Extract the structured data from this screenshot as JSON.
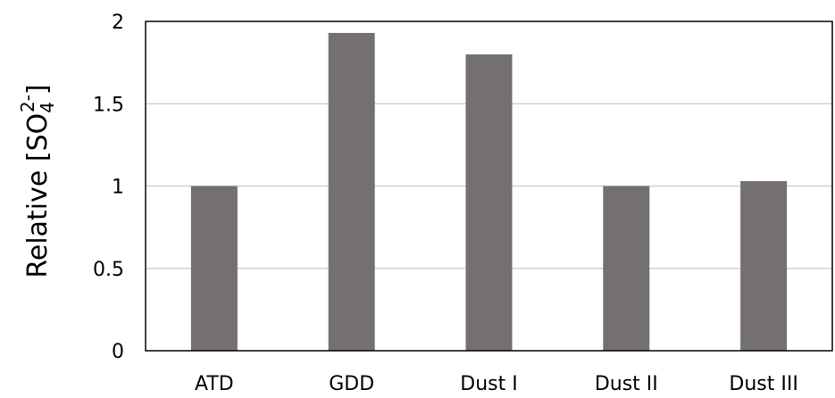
{
  "chart_data": {
    "type": "bar",
    "categories": [
      "ATD",
      "GDD",
      "Dust I",
      "Dust II",
      "Dust III"
    ],
    "values": [
      1.0,
      1.93,
      1.8,
      1.0,
      1.03
    ],
    "ylim": [
      0,
      2
    ],
    "yticks": [
      "0",
      "0.5",
      "1",
      "1.5",
      "2"
    ],
    "ylabel": {
      "prefix": "Relative [SO",
      "subscript": "4",
      "superscript": "2-",
      "suffix": "]"
    },
    "grid": true,
    "colors": {
      "bar": "#747070",
      "grid": "#d0d0d0",
      "frame": "#000000"
    }
  }
}
